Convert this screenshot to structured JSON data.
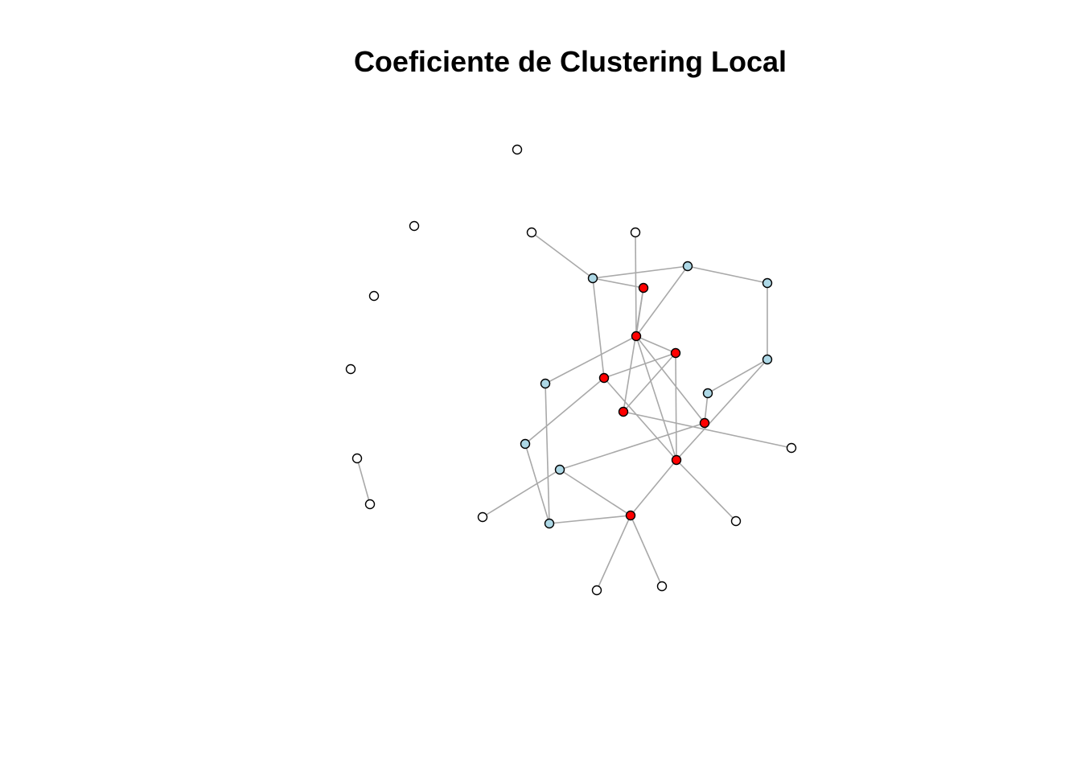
{
  "title": "Coeficiente de Clustering Local",
  "colors": {
    "high": "#ff0000",
    "mid": "#add8e6",
    "zero": "#ffffff",
    "edge": "#a9a9a9",
    "stroke": "#000000"
  },
  "nodes": [
    {
      "id": "n1",
      "group": "zero"
    },
    {
      "id": "n2",
      "group": "zero"
    },
    {
      "id": "n3",
      "group": "zero"
    },
    {
      "id": "n4",
      "group": "zero"
    },
    {
      "id": "n5",
      "group": "zero"
    },
    {
      "id": "n6",
      "group": "zero"
    },
    {
      "id": "n7",
      "group": "zero"
    },
    {
      "id": "n8",
      "group": "zero"
    },
    {
      "id": "n9",
      "group": "zero"
    },
    {
      "id": "n10",
      "group": "mid"
    },
    {
      "id": "n11",
      "group": "mid"
    },
    {
      "id": "n12",
      "group": "high"
    },
    {
      "id": "n13",
      "group": "mid"
    },
    {
      "id": "n14",
      "group": "high"
    },
    {
      "id": "n15",
      "group": "high"
    },
    {
      "id": "n16",
      "group": "mid"
    },
    {
      "id": "n17",
      "group": "mid"
    },
    {
      "id": "n18",
      "group": "high"
    },
    {
      "id": "n19",
      "group": "mid"
    },
    {
      "id": "n20",
      "group": "high"
    },
    {
      "id": "n21",
      "group": "high"
    },
    {
      "id": "n22",
      "group": "zero"
    },
    {
      "id": "n23",
      "group": "mid"
    },
    {
      "id": "n24",
      "group": "high"
    },
    {
      "id": "n25",
      "group": "mid"
    },
    {
      "id": "n26",
      "group": "high"
    },
    {
      "id": "n27",
      "group": "mid"
    },
    {
      "id": "n28",
      "group": "zero"
    },
    {
      "id": "n29",
      "group": "zero"
    },
    {
      "id": "n30",
      "group": "zero"
    },
    {
      "id": "n31",
      "group": "zero"
    },
    {
      "id": "n32",
      "group": "zero"
    }
  ],
  "edges": [
    [
      "n5",
      "n6"
    ],
    [
      "n8",
      "n10"
    ],
    [
      "n10",
      "n11"
    ],
    [
      "n10",
      "n12"
    ],
    [
      "n10",
      "n18"
    ],
    [
      "n9",
      "n14"
    ],
    [
      "n11",
      "n13"
    ],
    [
      "n11",
      "n14"
    ],
    [
      "n13",
      "n17"
    ],
    [
      "n12",
      "n14"
    ],
    [
      "n12",
      "n20"
    ],
    [
      "n14",
      "n16"
    ],
    [
      "n14",
      "n15"
    ],
    [
      "n14",
      "n21"
    ],
    [
      "n14",
      "n24"
    ],
    [
      "n18",
      "n15"
    ],
    [
      "n15",
      "n24"
    ],
    [
      "n15",
      "n20"
    ],
    [
      "n17",
      "n19"
    ],
    [
      "n17",
      "n24"
    ],
    [
      "n18",
      "n23"
    ],
    [
      "n18",
      "n24"
    ],
    [
      "n21",
      "n19"
    ],
    [
      "n21",
      "n25"
    ],
    [
      "n16",
      "n27"
    ],
    [
      "n20",
      "n22"
    ],
    [
      "n24",
      "n26"
    ],
    [
      "n24",
      "n28"
    ],
    [
      "n25",
      "n26"
    ],
    [
      "n25",
      "n29"
    ],
    [
      "n23",
      "n27"
    ],
    [
      "n27",
      "n26"
    ],
    [
      "n26",
      "n30"
    ],
    [
      "n26",
      "n31"
    ]
  ]
}
